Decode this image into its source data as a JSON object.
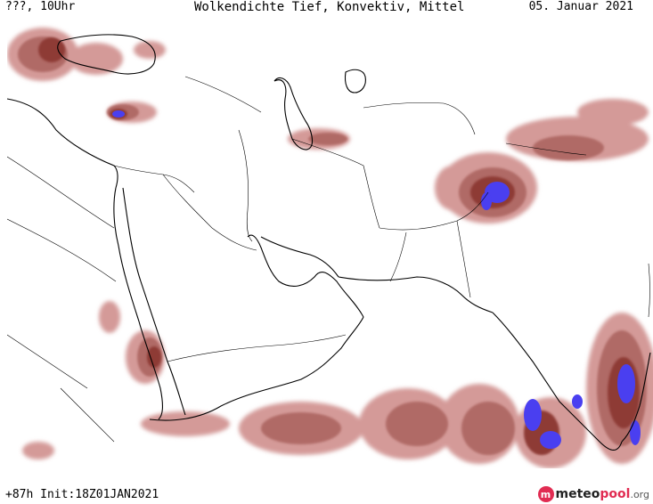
{
  "header": {
    "left": "???, 10Uhr",
    "title": "Wolkendichte  Tief, Konvektiv, Mittel",
    "date": "05. Januar 2021"
  },
  "footer": {
    "run_info": "+87h Init:18Z01JAN2021"
  },
  "brand": {
    "meteo": "meteo",
    "pool": "pool",
    "org": ".org"
  },
  "colors": {
    "cloud_light": "#d49a98",
    "cloud_medium": "#b06a66",
    "cloud_dense": "#8e3a36",
    "cloud_max": "#4a3ff0",
    "coastline": "#000000",
    "border": "#000000",
    "brand_accent": "#e12c52"
  },
  "map": {
    "region": "Middle East / Arabian Peninsula / South Asia",
    "layers": [
      "coastlines",
      "country-borders",
      "cloud-density"
    ]
  }
}
